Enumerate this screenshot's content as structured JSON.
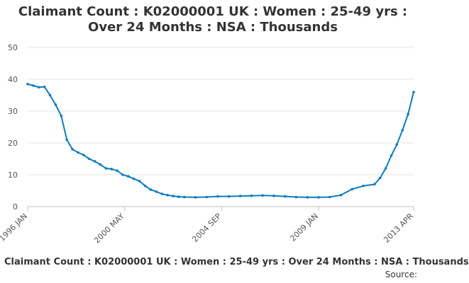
{
  "chart_data": {
    "type": "line",
    "title_lines": [
      "Claimant Count : K02000001 UK : Women : 25-49 yrs :",
      "Over 24 Months : NSA : Thousands"
    ],
    "xlabel": "",
    "ylabel": "",
    "ylim": [
      0,
      50
    ],
    "y_ticks": [
      0,
      10,
      20,
      30,
      40,
      50
    ],
    "x_range": [
      1996.0,
      2013.25
    ],
    "x_ticks": [
      {
        "label": "1996 JAN",
        "x": 1996.0
      },
      {
        "label": "2000 MAY",
        "x": 2000.333
      },
      {
        "label": "2004 SEP",
        "x": 2004.667
      },
      {
        "label": "2009 JAN",
        "x": 2009.0
      },
      {
        "label": "2013 APR",
        "x": 2013.25
      }
    ],
    "grid": true,
    "color": "#0e7bc0",
    "series": [
      {
        "name": "Claimant Count : K02000001 UK : Women : 25-49 yrs : Over 24 Months : NSA : Thousands",
        "x": [
          1996.0,
          1996.25,
          1996.5,
          1996.75,
          1997.0,
          1997.25,
          1997.5,
          1997.75,
          1998.0,
          1998.25,
          1998.5,
          1998.75,
          1999.0,
          1999.25,
          1999.5,
          1999.75,
          2000.0,
          2000.25,
          2000.5,
          2000.75,
          2001.0,
          2001.25,
          2001.5,
          2001.75,
          2002.0,
          2002.25,
          2002.5,
          2002.75,
          2003.0,
          2003.5,
          2004.0,
          2004.5,
          2005.0,
          2005.5,
          2006.0,
          2006.5,
          2007.0,
          2007.5,
          2008.0,
          2008.5,
          2009.0,
          2009.5,
          2010.0,
          2010.5,
          2011.0,
          2011.5,
          2011.75,
          2012.0,
          2012.25,
          2012.5,
          2012.75,
          2013.0,
          2013.25
        ],
        "y": [
          38.5,
          38.0,
          37.5,
          37.6,
          35.0,
          32.0,
          28.5,
          21.0,
          18.0,
          17.0,
          16.2,
          15.0,
          14.2,
          13.2,
          12.0,
          11.8,
          11.3,
          10.0,
          9.5,
          8.7,
          8.0,
          6.5,
          5.3,
          4.7,
          4.0,
          3.6,
          3.3,
          3.1,
          3.0,
          2.9,
          3.0,
          3.2,
          3.2,
          3.3,
          3.4,
          3.5,
          3.4,
          3.2,
          3.0,
          2.9,
          2.9,
          3.0,
          3.6,
          5.5,
          6.5,
          7.0,
          9.0,
          12.0,
          16.0,
          19.5,
          24.0,
          29.0,
          36.0
        ]
      }
    ]
  },
  "legend_text": "Claimant Count : K02000001 UK : Women : 25-49 yrs : Over 24 Months : NSA : Thousands",
  "source_label": "Source:"
}
